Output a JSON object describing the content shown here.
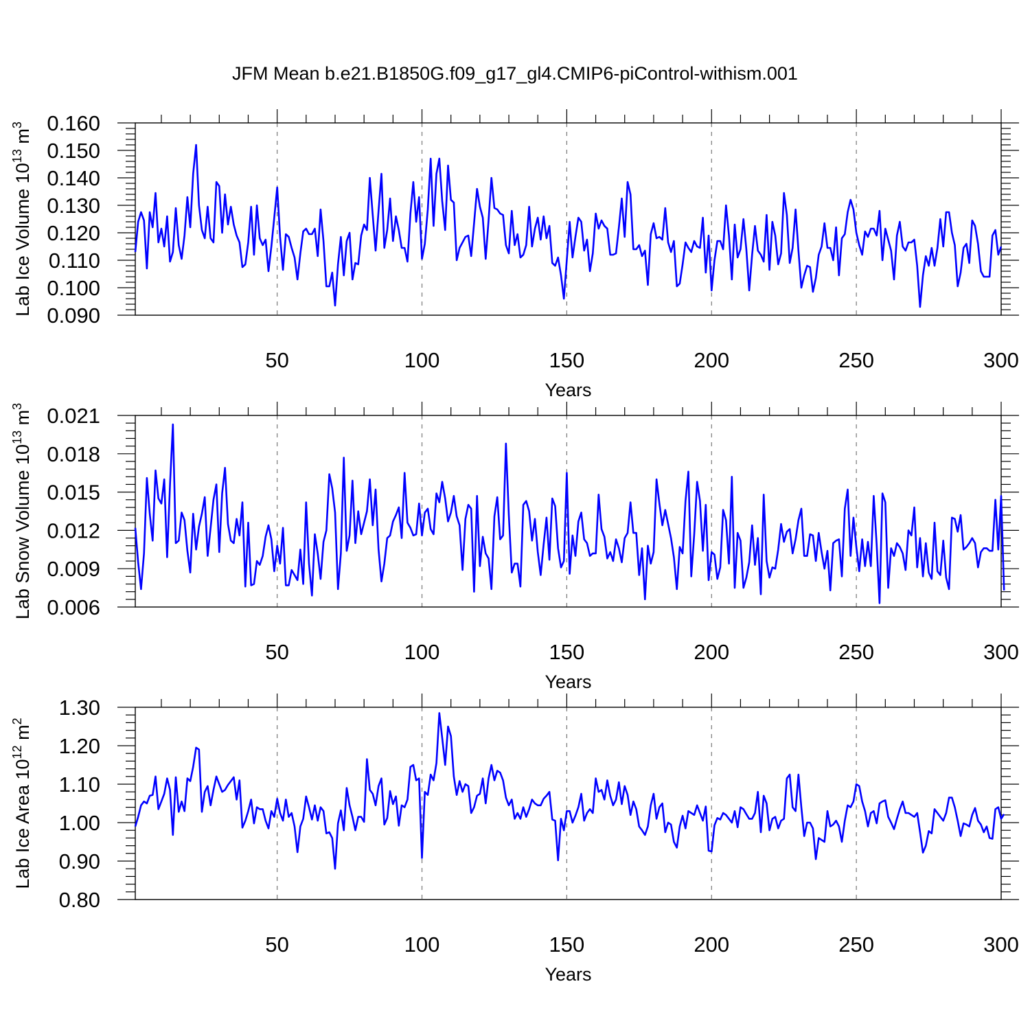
{
  "chart_data": [
    {
      "type": "line",
      "id": "ice_volume",
      "title": "JFM Mean b.e21.B1850G.f09_g17_gl4.CMIP6-piControl-withism.001",
      "ylabel": "Lab Ice Volume",
      "ylabel_unit_base": "10",
      "ylabel_unit_exp": "13",
      "ylabel_unit_tail": "m",
      "ylabel_unit_tail_exp": "3",
      "xlabel": "Years",
      "xlim": [
        1,
        300
      ],
      "ylim": [
        0.09,
        0.16
      ],
      "xticks": [
        50,
        100,
        150,
        200,
        250,
        300
      ],
      "xtick_labels": [
        "50",
        "100",
        "150",
        "200",
        "250",
        "300"
      ],
      "yticks": [
        0.09,
        0.1,
        0.11,
        0.12,
        0.13,
        0.14,
        0.15,
        0.16
      ],
      "ytick_labels": [
        "0.090",
        "0.100",
        "0.110",
        "0.120",
        "0.130",
        "0.140",
        "0.150",
        "0.160"
      ],
      "grid": "vertical dashed at major x ticks",
      "color": "#0000ff",
      "x_start": 1,
      "values": [
        0.113,
        0.124,
        0.1275,
        0.1245,
        0.107,
        0.1275,
        0.122,
        0.1345,
        0.1165,
        0.1215,
        0.115,
        0.126,
        0.1095,
        0.113,
        0.129,
        0.1155,
        0.1105,
        0.119,
        0.133,
        0.122,
        0.1415,
        0.152,
        0.13,
        0.121,
        0.118,
        0.1295,
        0.118,
        0.1165,
        0.1385,
        0.137,
        0.12,
        0.134,
        0.123,
        0.1295,
        0.123,
        0.119,
        0.1165,
        0.1075,
        0.1085,
        0.1165,
        0.1295,
        0.112,
        0.13,
        0.118,
        0.1155,
        0.1175,
        0.106,
        0.115,
        0.1255,
        0.1365,
        0.1185,
        0.1065,
        0.1195,
        0.1185,
        0.1145,
        0.111,
        0.103,
        0.1125,
        0.1205,
        0.1215,
        0.1195,
        0.1195,
        0.1215,
        0.1115,
        0.1285,
        0.117,
        0.1005,
        0.1005,
        0.1055,
        0.0935,
        0.1085,
        0.1185,
        0.1045,
        0.117,
        0.12,
        0.103,
        0.109,
        0.1085,
        0.119,
        0.123,
        0.121,
        0.14,
        0.1265,
        0.1135,
        0.128,
        0.1415,
        0.1145,
        0.121,
        0.1325,
        0.117,
        0.126,
        0.121,
        0.1145,
        0.1145,
        0.1095,
        0.127,
        0.1385,
        0.124,
        0.133,
        0.1105,
        0.116,
        0.1285,
        0.147,
        0.1225,
        0.1415,
        0.147,
        0.1315,
        0.121,
        0.1445,
        0.132,
        0.131,
        0.11,
        0.1145,
        0.1165,
        0.1185,
        0.119,
        0.1115,
        0.1235,
        0.136,
        0.1295,
        0.1255,
        0.1105,
        0.1245,
        0.14,
        0.129,
        0.1285,
        0.127,
        0.1265,
        0.1155,
        0.1125,
        0.128,
        0.1155,
        0.1195,
        0.111,
        0.112,
        0.1155,
        0.1295,
        0.115,
        0.1215,
        0.1255,
        0.1175,
        0.126,
        0.118,
        0.1225,
        0.109,
        0.108,
        0.111,
        0.1045,
        0.096,
        0.11,
        0.124,
        0.111,
        0.1185,
        0.1255,
        0.124,
        0.1135,
        0.1175,
        0.106,
        0.1125,
        0.127,
        0.1215,
        0.1245,
        0.1225,
        0.1215,
        0.112,
        0.112,
        0.1125,
        0.122,
        0.1325,
        0.1185,
        0.1385,
        0.134,
        0.114,
        0.114,
        0.1155,
        0.1115,
        0.1135,
        0.101,
        0.1195,
        0.1235,
        0.118,
        0.1185,
        0.1175,
        0.129,
        0.1165,
        0.113,
        0.117,
        0.1005,
        0.1015,
        0.1085,
        0.1165,
        0.1145,
        0.113,
        0.117,
        0.115,
        0.1145,
        0.1255,
        0.1055,
        0.119,
        0.099,
        0.11,
        0.117,
        0.117,
        0.114,
        0.13,
        0.119,
        0.103,
        0.123,
        0.111,
        0.114,
        0.125,
        0.114,
        0.099,
        0.112,
        0.1225,
        0.1135,
        0.112,
        0.1095,
        0.1265,
        0.1065,
        0.124,
        0.119,
        0.1085,
        0.1125,
        0.1345,
        0.1265,
        0.109,
        0.1145,
        0.1285,
        0.1135,
        0.1,
        0.1045,
        0.108,
        0.1075,
        0.0985,
        0.1035,
        0.112,
        0.115,
        0.1235,
        0.1145,
        0.1145,
        0.11,
        0.122,
        0.1045,
        0.118,
        0.1195,
        0.1275,
        0.132,
        0.1285,
        0.12,
        0.1155,
        0.112,
        0.1205,
        0.1185,
        0.1215,
        0.1215,
        0.119,
        0.128,
        0.11,
        0.1215,
        0.1175,
        0.1135,
        0.103,
        0.119,
        0.124,
        0.115,
        0.1135,
        0.1165,
        0.1165,
        0.1175,
        0.108,
        0.093,
        0.1045,
        0.1115,
        0.108,
        0.1145,
        0.108,
        0.1145,
        0.125,
        0.115,
        0.1275,
        0.1275,
        0.12,
        0.1155,
        0.1005,
        0.1055,
        0.1145,
        0.116,
        0.109,
        0.1245,
        0.1225,
        0.116,
        0.106,
        0.104,
        0.104,
        0.104,
        0.119,
        0.121,
        0.112,
        0.115
      ]
    },
    {
      "type": "line",
      "id": "snow_volume",
      "ylabel": "Lab Snow Volume",
      "ylabel_unit_base": "10",
      "ylabel_unit_exp": "13",
      "ylabel_unit_tail": "m",
      "ylabel_unit_tail_exp": "3",
      "xlabel": "Years",
      "xlim": [
        1,
        300
      ],
      "ylim": [
        0.006,
        0.021
      ],
      "xticks": [
        50,
        100,
        150,
        200,
        250,
        300
      ],
      "xtick_labels": [
        "50",
        "100",
        "150",
        "200",
        "250",
        "300"
      ],
      "yticks": [
        0.006,
        0.009,
        0.012,
        0.015,
        0.018,
        0.021
      ],
      "ytick_labels": [
        "0.006",
        "0.009",
        "0.012",
        "0.015",
        "0.018",
        "0.021"
      ],
      "grid": "vertical dashed at major x ticks",
      "color": "#0000ff",
      "x_start": 1,
      "values": [
        0.0122,
        0.0095,
        0.0074,
        0.0102,
        0.0161,
        0.0133,
        0.0112,
        0.0167,
        0.0145,
        0.0141,
        0.016,
        0.0099,
        0.0156,
        0.0203,
        0.011,
        0.0112,
        0.0134,
        0.0128,
        0.0104,
        0.0087,
        0.0133,
        0.0105,
        0.0123,
        0.0133,
        0.0146,
        0.01,
        0.0122,
        0.0144,
        0.0156,
        0.0103,
        0.0149,
        0.0169,
        0.0125,
        0.0112,
        0.011,
        0.0129,
        0.0116,
        0.0142,
        0.0076,
        0.0126,
        0.0077,
        0.0078,
        0.0096,
        0.0093,
        0.01,
        0.0115,
        0.0124,
        0.0113,
        0.0088,
        0.0108,
        0.0094,
        0.0122,
        0.0077,
        0.0077,
        0.0089,
        0.0085,
        0.0081,
        0.0105,
        0.0078,
        0.0142,
        0.0094,
        0.0069,
        0.0117,
        0.0102,
        0.0082,
        0.0111,
        0.012,
        0.0164,
        0.0153,
        0.0134,
        0.0074,
        0.0102,
        0.0177,
        0.0104,
        0.0116,
        0.0159,
        0.011,
        0.0135,
        0.0117,
        0.0126,
        0.0135,
        0.016,
        0.0124,
        0.0152,
        0.0105,
        0.008,
        0.0094,
        0.0114,
        0.0116,
        0.0127,
        0.0132,
        0.0138,
        0.0114,
        0.0165,
        0.0126,
        0.0122,
        0.0116,
        0.0117,
        0.0141,
        0.0116,
        0.0134,
        0.0137,
        0.0121,
        0.0117,
        0.0149,
        0.0142,
        0.0158,
        0.0145,
        0.0127,
        0.0134,
        0.0147,
        0.0131,
        0.0124,
        0.0089,
        0.0129,
        0.014,
        0.0137,
        0.0072,
        0.0147,
        0.0092,
        0.0115,
        0.0102,
        0.0098,
        0.0074,
        0.0131,
        0.0146,
        0.0113,
        0.0116,
        0.0188,
        0.0132,
        0.0087,
        0.0094,
        0.0094,
        0.0076,
        0.014,
        0.0143,
        0.0135,
        0.0112,
        0.0129,
        0.0103,
        0.0085,
        0.0109,
        0.013,
        0.0097,
        0.0145,
        0.0139,
        0.0106,
        0.0091,
        0.0096,
        0.0165,
        0.0086,
        0.0116,
        0.01,
        0.0127,
        0.0134,
        0.0113,
        0.011,
        0.01,
        0.0102,
        0.0102,
        0.0148,
        0.0121,
        0.0115,
        0.0098,
        0.0103,
        0.0096,
        0.0113,
        0.0106,
        0.0095,
        0.0114,
        0.0118,
        0.0142,
        0.0118,
        0.0118,
        0.0085,
        0.0106,
        0.0066,
        0.0108,
        0.0094,
        0.0103,
        0.016,
        0.0141,
        0.0124,
        0.0136,
        0.0125,
        0.0114,
        0.0099,
        0.0074,
        0.0107,
        0.0102,
        0.0143,
        0.0166,
        0.0084,
        0.0117,
        0.0158,
        0.0143,
        0.0104,
        0.014,
        0.0081,
        0.0103,
        0.0101,
        0.0082,
        0.0091,
        0.0136,
        0.0128,
        0.0094,
        0.0162,
        0.0075,
        0.0118,
        0.0112,
        0.0075,
        0.0083,
        0.0095,
        0.0124,
        0.0093,
        0.0114,
        0.007,
        0.0148,
        0.0096,
        0.0083,
        0.0091,
        0.009,
        0.0105,
        0.0125,
        0.0111,
        0.0119,
        0.0121,
        0.0102,
        0.0113,
        0.0128,
        0.0137,
        0.01,
        0.01,
        0.0117,
        0.0116,
        0.0096,
        0.0118,
        0.0103,
        0.009,
        0.0104,
        0.0073,
        0.011,
        0.0112,
        0.0113,
        0.0084,
        0.0137,
        0.0152,
        0.01,
        0.013,
        0.0107,
        0.0088,
        0.0113,
        0.0092,
        0.0111,
        0.0092,
        0.0147,
        0.0109,
        0.0063,
        0.0149,
        0.0142,
        0.0075,
        0.0106,
        0.01,
        0.011,
        0.0107,
        0.0102,
        0.0089,
        0.012,
        0.0116,
        0.0138,
        0.0091,
        0.0114,
        0.0084,
        0.011,
        0.0087,
        0.0082,
        0.0126,
        0.0088,
        0.0085,
        0.0112,
        0.0083,
        0.0074,
        0.013,
        0.0129,
        0.0119,
        0.0132,
        0.0105,
        0.0107,
        0.011,
        0.0114,
        0.011,
        0.0091,
        0.0103,
        0.0106,
        0.0106,
        0.0104,
        0.0104,
        0.0144,
        0.0105,
        0.0147,
        0.0073
      ]
    },
    {
      "type": "line",
      "id": "ice_area",
      "ylabel": "Lab Ice Area",
      "ylabel_unit_base": "10",
      "ylabel_unit_exp": "12",
      "ylabel_unit_tail": "m",
      "ylabel_unit_tail_exp": "2",
      "xlabel": "Years",
      "xlim": [
        1,
        300
      ],
      "ylim": [
        0.8,
        1.3
      ],
      "xticks": [
        50,
        100,
        150,
        200,
        250,
        300
      ],
      "xtick_labels": [
        "50",
        "100",
        "150",
        "200",
        "250",
        "300"
      ],
      "yticks": [
        0.8,
        0.9,
        1.0,
        1.1,
        1.2,
        1.3
      ],
      "ytick_labels": [
        "0.80",
        "0.90",
        "1.00",
        "1.10",
        "1.20",
        "1.30"
      ],
      "grid": "vertical dashed at major x ticks",
      "color": "#0000ff",
      "x_start": 1,
      "values": [
        0.99,
        1.015,
        1.045,
        1.055,
        1.05,
        1.07,
        1.072,
        1.12,
        1.035,
        1.055,
        1.075,
        1.115,
        1.085,
        0.968,
        1.118,
        1.028,
        1.055,
        1.03,
        1.115,
        1.108,
        1.145,
        1.195,
        1.19,
        1.028,
        1.08,
        1.095,
        1.045,
        1.085,
        1.12,
        1.1,
        1.08,
        1.085,
        1.098,
        1.108,
        1.118,
        1.06,
        1.11,
        0.987,
        1.005,
        1.03,
        1.06,
        0.998,
        1.04,
        1.035,
        1.035,
        1.005,
        0.985,
        1.03,
        1.015,
        1.062,
        1.025,
        1.005,
        1.06,
        1.015,
        1.025,
        0.99,
        0.923,
        0.99,
        1.01,
        1.068,
        1.04,
        1.008,
        1.045,
        1.005,
        1.04,
        1.03,
        0.972,
        0.975,
        0.96,
        0.88,
        0.998,
        1.032,
        0.98,
        1.09,
        1.045,
        1.015,
        0.98,
        1.015,
        1.015,
        1.002,
        1.165,
        1.085,
        1.075,
        1.045,
        1.095,
        1.115,
        0.995,
        1.012,
        1.082,
        1.048,
        1.068,
        0.992,
        1.045,
        1.04,
        1.06,
        1.145,
        1.15,
        1.11,
        1.115,
        0.908,
        1.08,
        1.072,
        1.125,
        1.11,
        1.155,
        1.285,
        1.22,
        1.15,
        1.25,
        1.225,
        1.12,
        1.072,
        1.108,
        1.08,
        1.1,
        1.095,
        1.025,
        1.04,
        1.07,
        1.075,
        1.115,
        1.05,
        1.115,
        1.15,
        1.11,
        1.135,
        1.13,
        1.11,
        1.065,
        1.045,
        1.06,
        1.01,
        1.025,
        1.01,
        1.04,
        1.015,
        1.035,
        1.06,
        1.05,
        1.045,
        1.045,
        1.062,
        1.07,
        1.08,
        1.008,
        1.005,
        0.902,
        1.01,
        0.98,
        1.03,
        1.03,
        1.0,
        1.018,
        1.04,
        1.075,
        1.005,
        1.025,
        1.035,
        1.025,
        1.115,
        1.08,
        1.085,
        1.06,
        1.11,
        1.07,
        1.045,
        1.06,
        1.105,
        1.048,
        1.095,
        1.072,
        1.02,
        1.055,
        1.035,
        0.99,
        0.98,
        0.968,
        0.99,
        1.045,
        1.075,
        1.01,
        1.04,
        1.05,
        0.975,
        1.0,
        0.995,
        0.95,
        0.935,
        0.99,
        1.018,
        0.985,
        1.03,
        1.025,
        1.02,
        1.045,
        1.025,
        1.005,
        1.042,
        0.927,
        0.925,
        0.993,
        1.012,
        1.008,
        1.025,
        1.02,
        1.01,
        1.0,
        1.03,
        0.988,
        1.04,
        1.035,
        1.022,
        1.01,
        1.01,
        1.025,
        1.08,
        0.975,
        1.07,
        1.05,
        0.98,
        1.01,
        1.015,
        0.985,
        1.005,
        1.01,
        1.115,
        1.125,
        1.04,
        1.03,
        1.125,
        1.04,
        0.965,
        1.0,
        1.0,
        0.985,
        0.905,
        0.96,
        0.955,
        0.95,
        1.03,
        0.99,
        0.995,
        1.005,
        0.99,
        0.95,
        1.005,
        1.045,
        1.04,
        1.055,
        1.1,
        1.095,
        1.055,
        1.03,
        0.99,
        1.025,
        1.03,
        0.998,
        1.05,
        1.055,
        1.058,
        1.015,
        1.0,
        0.983,
        1.01,
        1.035,
        1.055,
        1.025,
        1.025,
        1.02,
        1.015,
        1.025,
        0.975,
        0.922,
        0.94,
        0.978,
        0.972,
        1.035,
        1.025,
        1.015,
        1.005,
        1.025,
        1.065,
        1.065,
        1.04,
        1.005,
        0.965,
        0.998,
        0.995,
        0.99,
        1.02,
        1.038,
        1.005,
        0.995,
        0.975,
        0.99,
        0.96,
        0.958,
        1.035,
        1.04,
        1.01,
        1.022
      ]
    }
  ]
}
